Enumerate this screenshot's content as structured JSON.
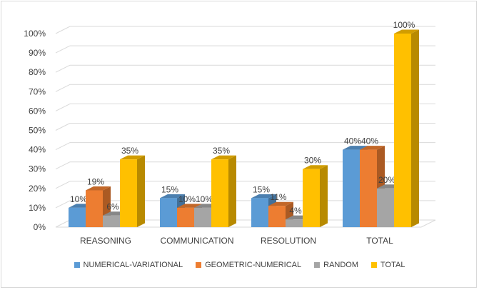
{
  "chart_data": {
    "type": "bar",
    "style": "3d-clustered-column",
    "categories": [
      "REASONING",
      "COMMUNICATION",
      "RESOLUTION",
      "TOTAL"
    ],
    "series": [
      {
        "name": "NUMERICAL-VARIATIONAL",
        "color": "#5b9bd5",
        "values": [
          10,
          15,
          15,
          40
        ],
        "labels": [
          "10%",
          "15%",
          "15%",
          "40%"
        ]
      },
      {
        "name": "GEOMETRIC-NUMERICAL",
        "color": "#ed7d31",
        "values": [
          19,
          10,
          11,
          40
        ],
        "labels": [
          "19%",
          "10%",
          "11%",
          "40%"
        ]
      },
      {
        "name": "RANDOM",
        "color": "#a5a5a5",
        "values": [
          6,
          10,
          4,
          20
        ],
        "labels": [
          "6%",
          "10%",
          "4%",
          "20%"
        ]
      },
      {
        "name": "TOTAL",
        "color": "#ffc000",
        "values": [
          35,
          35,
          30,
          100
        ],
        "labels": [
          "35%",
          "35%",
          "30%",
          "100%"
        ]
      }
    ],
    "yticks": [
      "0%",
      "10%",
      "20%",
      "30%",
      "40%",
      "50%",
      "60%",
      "70%",
      "80%",
      "90%",
      "100%"
    ],
    "ylim": [
      0,
      100
    ],
    "grid": true,
    "legend": "bottom"
  }
}
